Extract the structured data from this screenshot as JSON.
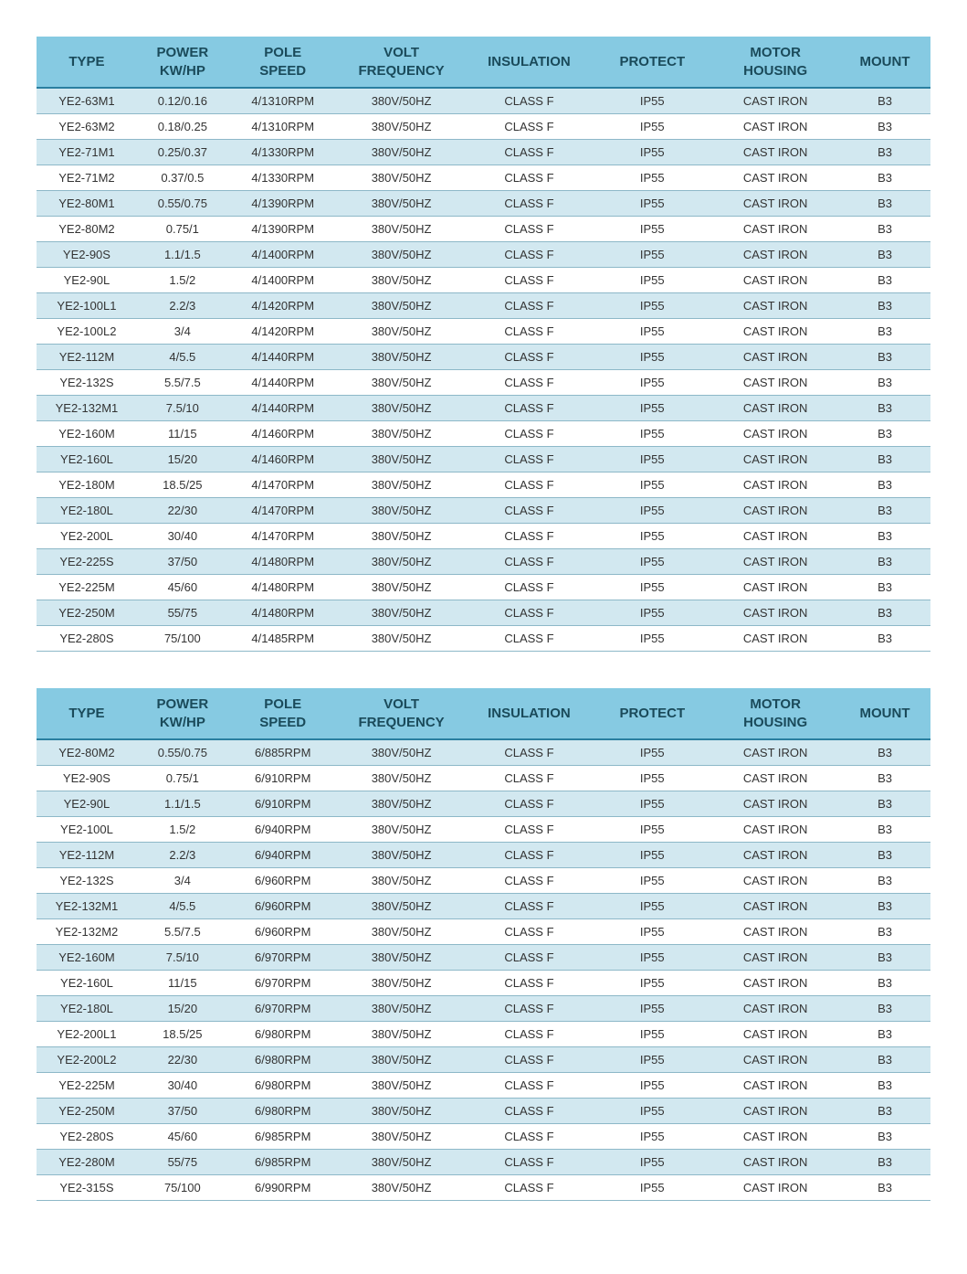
{
  "headers": {
    "type": "TYPE",
    "power_l1": "POWER",
    "power_l2": "KW/HP",
    "pole_l1": "POLE",
    "pole_l2": "SPEED",
    "volt_l1": "VOLT",
    "volt_l2": "FREQUENCY",
    "insulation": "INSULATION",
    "protect": "PROTECT",
    "housing_l1": "MOTOR",
    "housing_l2": "HOUSING",
    "mount": "MOUNT"
  },
  "colors": {
    "header_bg": "#86cae2",
    "header_text": "#1a4a5a",
    "alt_row_bg": "#d2e8f0",
    "border": "#8db8c8",
    "header_border": "#2a7fa0"
  },
  "table1": {
    "rows": [
      {
        "type": "YE2-63M1",
        "power": "0.12/0.16",
        "pole": "4/1310RPM",
        "volt": "380V/50HZ",
        "ins": "CLASS F",
        "prot": "IP55",
        "hous": "CAST IRON",
        "mount": "B3",
        "alt": true
      },
      {
        "type": "YE2-63M2",
        "power": "0.18/0.25",
        "pole": "4/1310RPM",
        "volt": "380V/50HZ",
        "ins": "CLASS F",
        "prot": "IP55",
        "hous": "CAST IRON",
        "mount": "B3",
        "alt": false
      },
      {
        "type": "YE2-71M1",
        "power": "0.25/0.37",
        "pole": "4/1330RPM",
        "volt": "380V/50HZ",
        "ins": "CLASS F",
        "prot": "IP55",
        "hous": "CAST IRON",
        "mount": "B3",
        "alt": true
      },
      {
        "type": "YE2-71M2",
        "power": "0.37/0.5",
        "pole": "4/1330RPM",
        "volt": "380V/50HZ",
        "ins": "CLASS F",
        "prot": "IP55",
        "hous": "CAST IRON",
        "mount": "B3",
        "alt": false
      },
      {
        "type": "YE2-80M1",
        "power": "0.55/0.75",
        "pole": "4/1390RPM",
        "volt": "380V/50HZ",
        "ins": "CLASS F",
        "prot": "IP55",
        "hous": "CAST IRON",
        "mount": "B3",
        "alt": true
      },
      {
        "type": "YE2-80M2",
        "power": "0.75/1",
        "pole": "4/1390RPM",
        "volt": "380V/50HZ",
        "ins": "CLASS F",
        "prot": "IP55",
        "hous": "CAST IRON",
        "mount": "B3",
        "alt": false
      },
      {
        "type": "YE2-90S",
        "power": "1.1/1.5",
        "pole": "4/1400RPM",
        "volt": "380V/50HZ",
        "ins": "CLASS F",
        "prot": "IP55",
        "hous": "CAST IRON",
        "mount": "B3",
        "alt": true
      },
      {
        "type": "YE2-90L",
        "power": "1.5/2",
        "pole": "4/1400RPM",
        "volt": "380V/50HZ",
        "ins": "CLASS F",
        "prot": "IP55",
        "hous": "CAST IRON",
        "mount": "B3",
        "alt": false
      },
      {
        "type": "YE2-100L1",
        "power": "2.2/3",
        "pole": "4/1420RPM",
        "volt": "380V/50HZ",
        "ins": "CLASS F",
        "prot": "IP55",
        "hous": "CAST IRON",
        "mount": "B3",
        "alt": true
      },
      {
        "type": "YE2-100L2",
        "power": "3/4",
        "pole": "4/1420RPM",
        "volt": "380V/50HZ",
        "ins": "CLASS F",
        "prot": "IP55",
        "hous": "CAST IRON",
        "mount": "B3",
        "alt": false
      },
      {
        "type": "YE2-112M",
        "power": "4/5.5",
        "pole": "4/1440RPM",
        "volt": "380V/50HZ",
        "ins": "CLASS F",
        "prot": "IP55",
        "hous": "CAST IRON",
        "mount": "B3",
        "alt": true
      },
      {
        "type": "YE2-132S",
        "power": "5.5/7.5",
        "pole": "4/1440RPM",
        "volt": "380V/50HZ",
        "ins": "CLASS F",
        "prot": "IP55",
        "hous": "CAST IRON",
        "mount": "B3",
        "alt": false
      },
      {
        "type": "YE2-132M1",
        "power": "7.5/10",
        "pole": "4/1440RPM",
        "volt": "380V/50HZ",
        "ins": "CLASS F",
        "prot": "IP55",
        "hous": "CAST IRON",
        "mount": "B3",
        "alt": true
      },
      {
        "type": "YE2-160M",
        "power": "11/15",
        "pole": "4/1460RPM",
        "volt": "380V/50HZ",
        "ins": "CLASS F",
        "prot": "IP55",
        "hous": "CAST IRON",
        "mount": "B3",
        "alt": false
      },
      {
        "type": "YE2-160L",
        "power": "15/20",
        "pole": "4/1460RPM",
        "volt": "380V/50HZ",
        "ins": "CLASS F",
        "prot": "IP55",
        "hous": "CAST IRON",
        "mount": "B3",
        "alt": true
      },
      {
        "type": "YE2-180M",
        "power": "18.5/25",
        "pole": "4/1470RPM",
        "volt": "380V/50HZ",
        "ins": "CLASS F",
        "prot": "IP55",
        "hous": "CAST IRON",
        "mount": "B3",
        "alt": false
      },
      {
        "type": "YE2-180L",
        "power": "22/30",
        "pole": "4/1470RPM",
        "volt": "380V/50HZ",
        "ins": "CLASS F",
        "prot": "IP55",
        "hous": "CAST IRON",
        "mount": "B3",
        "alt": true
      },
      {
        "type": "YE2-200L",
        "power": "30/40",
        "pole": "4/1470RPM",
        "volt": "380V/50HZ",
        "ins": "CLASS F",
        "prot": "IP55",
        "hous": "CAST IRON",
        "mount": "B3",
        "alt": false
      },
      {
        "type": "YE2-225S",
        "power": "37/50",
        "pole": "4/1480RPM",
        "volt": "380V/50HZ",
        "ins": "CLASS F",
        "prot": "IP55",
        "hous": "CAST IRON",
        "mount": "B3",
        "alt": true
      },
      {
        "type": "YE2-225M",
        "power": "45/60",
        "pole": "4/1480RPM",
        "volt": "380V/50HZ",
        "ins": "CLASS F",
        "prot": "IP55",
        "hous": "CAST IRON",
        "mount": "B3",
        "alt": false
      },
      {
        "type": "YE2-250M",
        "power": "55/75",
        "pole": "4/1480RPM",
        "volt": "380V/50HZ",
        "ins": "CLASS F",
        "prot": "IP55",
        "hous": "CAST IRON",
        "mount": "B3",
        "alt": true
      },
      {
        "type": "YE2-280S",
        "power": "75/100",
        "pole": "4/1485RPM",
        "volt": "380V/50HZ",
        "ins": "CLASS F",
        "prot": "IP55",
        "hous": "CAST IRON",
        "mount": "B3",
        "alt": false
      }
    ]
  },
  "table2": {
    "rows": [
      {
        "type": "YE2-80M2",
        "power": "0.55/0.75",
        "pole": "6/885RPM",
        "volt": "380V/50HZ",
        "ins": "CLASS F",
        "prot": "IP55",
        "hous": "CAST IRON",
        "mount": "B3",
        "alt": true
      },
      {
        "type": "YE2-90S",
        "power": "0.75/1",
        "pole": "6/910RPM",
        "volt": "380V/50HZ",
        "ins": "CLASS F",
        "prot": "IP55",
        "hous": "CAST IRON",
        "mount": "B3",
        "alt": false
      },
      {
        "type": "YE2-90L",
        "power": "1.1/1.5",
        "pole": "6/910RPM",
        "volt": "380V/50HZ",
        "ins": "CLASS F",
        "prot": "IP55",
        "hous": "CAST IRON",
        "mount": "B3",
        "alt": true
      },
      {
        "type": "YE2-100L",
        "power": "1.5/2",
        "pole": "6/940RPM",
        "volt": "380V/50HZ",
        "ins": "CLASS F",
        "prot": "IP55",
        "hous": "CAST IRON",
        "mount": "B3",
        "alt": false
      },
      {
        "type": "YE2-112M",
        "power": "2.2/3",
        "pole": "6/940RPM",
        "volt": "380V/50HZ",
        "ins": "CLASS F",
        "prot": "IP55",
        "hous": "CAST IRON",
        "mount": "B3",
        "alt": true
      },
      {
        "type": "YE2-132S",
        "power": "3/4",
        "pole": "6/960RPM",
        "volt": "380V/50HZ",
        "ins": "CLASS F",
        "prot": "IP55",
        "hous": "CAST IRON",
        "mount": "B3",
        "alt": false
      },
      {
        "type": "YE2-132M1",
        "power": "4/5.5",
        "pole": "6/960RPM",
        "volt": "380V/50HZ",
        "ins": "CLASS F",
        "prot": "IP55",
        "hous": "CAST IRON",
        "mount": "B3",
        "alt": true
      },
      {
        "type": "YE2-132M2",
        "power": "5.5/7.5",
        "pole": "6/960RPM",
        "volt": "380V/50HZ",
        "ins": "CLASS F",
        "prot": "IP55",
        "hous": "CAST IRON",
        "mount": "B3",
        "alt": false
      },
      {
        "type": "YE2-160M",
        "power": "7.5/10",
        "pole": "6/970RPM",
        "volt": "380V/50HZ",
        "ins": "CLASS F",
        "prot": "IP55",
        "hous": "CAST IRON",
        "mount": "B3",
        "alt": true
      },
      {
        "type": "YE2-160L",
        "power": "11/15",
        "pole": "6/970RPM",
        "volt": "380V/50HZ",
        "ins": "CLASS F",
        "prot": "IP55",
        "hous": "CAST IRON",
        "mount": "B3",
        "alt": false
      },
      {
        "type": "YE2-180L",
        "power": "15/20",
        "pole": "6/970RPM",
        "volt": "380V/50HZ",
        "ins": "CLASS F",
        "prot": "IP55",
        "hous": "CAST IRON",
        "mount": "B3",
        "alt": true
      },
      {
        "type": "YE2-200L1",
        "power": "18.5/25",
        "pole": "6/980RPM",
        "volt": "380V/50HZ",
        "ins": "CLASS F",
        "prot": "IP55",
        "hous": "CAST IRON",
        "mount": "B3",
        "alt": false
      },
      {
        "type": "YE2-200L2",
        "power": "22/30",
        "pole": "6/980RPM",
        "volt": "380V/50HZ",
        "ins": "CLASS F",
        "prot": "IP55",
        "hous": "CAST IRON",
        "mount": "B3",
        "alt": true
      },
      {
        "type": "YE2-225M",
        "power": "30/40",
        "pole": "6/980RPM",
        "volt": "380V/50HZ",
        "ins": "CLASS F",
        "prot": "IP55",
        "hous": "CAST IRON",
        "mount": "B3",
        "alt": false
      },
      {
        "type": "YE2-250M",
        "power": "37/50",
        "pole": "6/980RPM",
        "volt": "380V/50HZ",
        "ins": "CLASS F",
        "prot": "IP55",
        "hous": "CAST IRON",
        "mount": "B3",
        "alt": true
      },
      {
        "type": "YE2-280S",
        "power": "45/60",
        "pole": "6/985RPM",
        "volt": "380V/50HZ",
        "ins": "CLASS F",
        "prot": "IP55",
        "hous": "CAST IRON",
        "mount": "B3",
        "alt": false
      },
      {
        "type": "YE2-280M",
        "power": "55/75",
        "pole": "6/985RPM",
        "volt": "380V/50HZ",
        "ins": "CLASS F",
        "prot": "IP55",
        "hous": "CAST IRON",
        "mount": "B3",
        "alt": true
      },
      {
        "type": "YE2-315S",
        "power": "75/100",
        "pole": "6/990RPM",
        "volt": "380V/50HZ",
        "ins": "CLASS F",
        "prot": "IP55",
        "hous": "CAST IRON",
        "mount": "B3",
        "alt": false
      }
    ]
  }
}
